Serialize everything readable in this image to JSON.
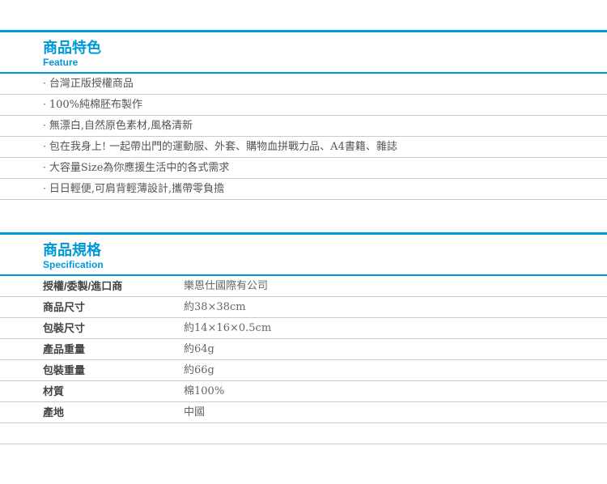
{
  "colors": {
    "accent_blue": "#0099d8",
    "divider_gray": "#cccccc",
    "feature_text": "#555555",
    "label_text": "#444444",
    "value_text": "#666666"
  },
  "feature_section": {
    "title": "商品特色",
    "subtitle": "Feature",
    "bullet": "·",
    "items": [
      "台灣正版授權商品",
      "100%純棉胚布製作",
      "無漂白,自然原色素材,風格清新",
      "包在我身上! 一起帶出門的運動服、外套、購物血拼戰力品、A4書籍、雜誌",
      "大容量Size為你應援生活中的各式需求",
      "日日輕便,可肩背輕薄設計,攜帶零負擔"
    ]
  },
  "spec_section": {
    "title": "商品規格",
    "subtitle": "Specification",
    "rows": [
      {
        "label": "授權/委製/進口商",
        "value": "樂恩仕國際有公司"
      },
      {
        "label": "商品尺寸",
        "value": "約38×38cm"
      },
      {
        "label": "包裝尺寸",
        "value": "約14×16×0.5cm"
      },
      {
        "label": "產品重量",
        "value": "約64g"
      },
      {
        "label": "包裝重量",
        "value": "約66g"
      },
      {
        "label": "材質",
        "value": "棉100%"
      },
      {
        "label": "產地",
        "value": "中國"
      }
    ]
  }
}
